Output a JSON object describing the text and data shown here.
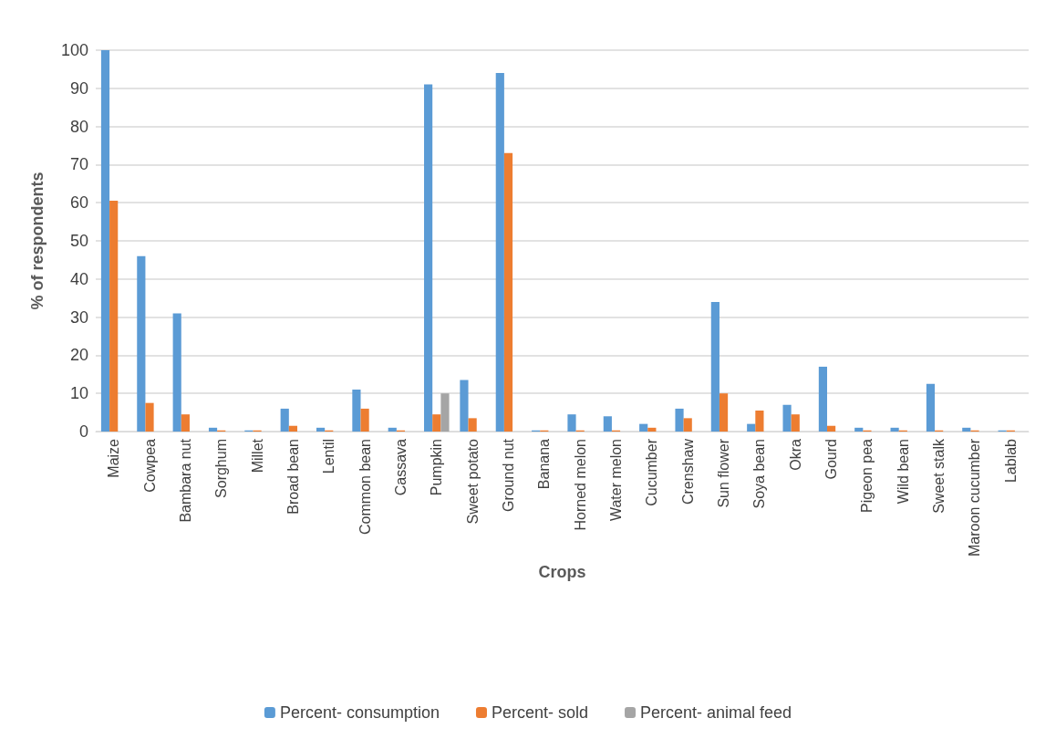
{
  "chart_data": {
    "type": "bar",
    "xlabel": "Crops",
    "ylabel": "% of respondents",
    "categories": [
      "Maize",
      "Cowpea",
      "Bambara nut",
      "Sorghum",
      "Millet",
      "Broad bean",
      "Lentil",
      "Common bean",
      "Cassava",
      "Pumpkin",
      "Sweet potato",
      "Ground nut",
      "Banana",
      "Horned melon",
      "Water melon",
      "Cucumber",
      "Crenshaw",
      "Sun flower",
      "Soya bean",
      "Okra",
      "Gourd",
      "Pigeon pea",
      "Wild bean",
      "Sweet stalk",
      "Maroon cucumber",
      "Lablab"
    ],
    "series": [
      {
        "name": "Percent- consumption",
        "color": "#5b9bd5",
        "values": [
          100,
          46,
          31,
          1,
          0.3,
          6,
          1,
          11,
          1,
          91,
          13.5,
          94,
          0.3,
          4.5,
          4,
          2,
          6,
          34,
          2,
          7,
          17,
          1,
          1,
          12.5,
          1,
          0.3
        ]
      },
      {
        "name": "Percent- sold",
        "color": "#ed7d31",
        "values": [
          60.5,
          7.5,
          4.5,
          0.3,
          0.3,
          1.5,
          0.3,
          6,
          0.3,
          4.5,
          3.5,
          73,
          0.3,
          0.3,
          0.3,
          1,
          3.5,
          10,
          5.5,
          4.5,
          1.5,
          0.3,
          0.3,
          0.3,
          0.3,
          0.3
        ]
      },
      {
        "name": "Percent- animal feed",
        "color": "#a5a5a5",
        "values": [
          0,
          0,
          0,
          0,
          0,
          0,
          0,
          0,
          0,
          10,
          0,
          0,
          0,
          0,
          0,
          0,
          0,
          0,
          0,
          0,
          0,
          0,
          0,
          0,
          0,
          0
        ]
      }
    ],
    "ylim": [
      0,
      100
    ],
    "yticks": [
      0,
      10,
      20,
      30,
      40,
      50,
      60,
      70,
      80,
      90,
      100
    ],
    "grid": "y",
    "legend": "bottom"
  }
}
